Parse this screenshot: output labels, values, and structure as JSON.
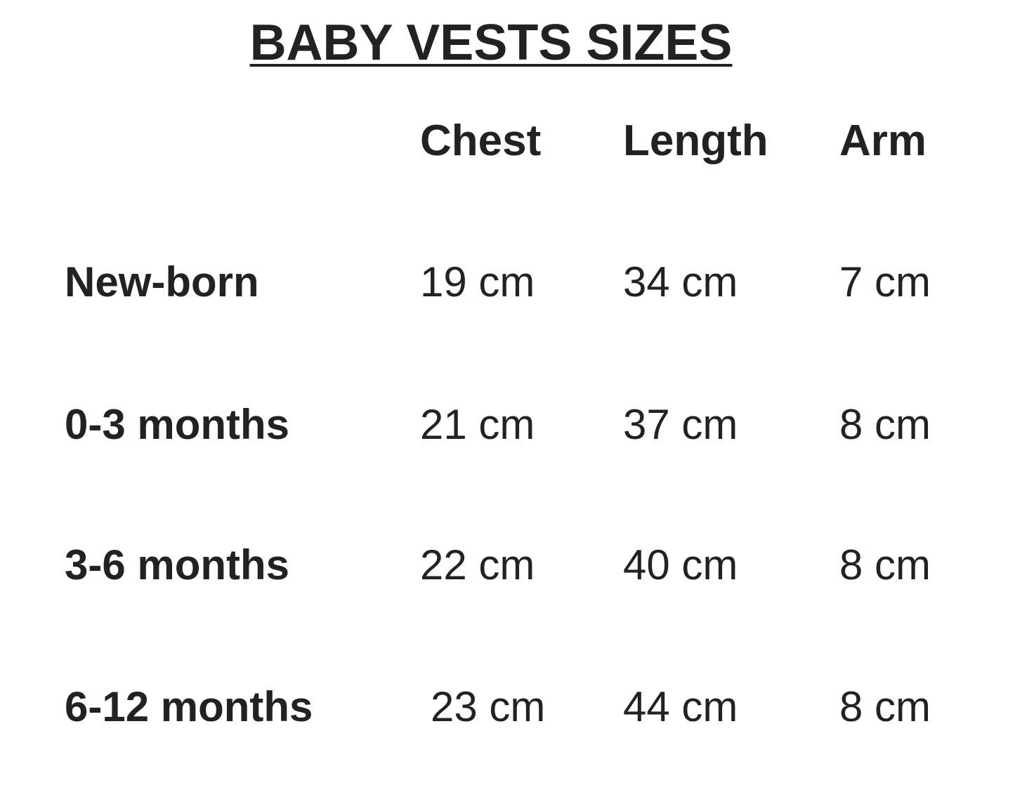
{
  "title": "BABY VESTS SIZES",
  "columns": [
    "Chest",
    "Length",
    "Arm"
  ],
  "rows": [
    {
      "size": "New-born",
      "chest": "19 cm",
      "length": "34 cm",
      "arm": "7 cm"
    },
    {
      "size": "0-3 months",
      "chest": "21 cm",
      "length": "37 cm",
      "arm": "8 cm"
    },
    {
      "size": "3-6 months",
      "chest": "22 cm",
      "length": "40 cm",
      "arm": "8 cm"
    },
    {
      "size": "6-12 months",
      "chest": "23 cm",
      "length": "44 cm",
      "arm": "8 cm"
    }
  ]
}
